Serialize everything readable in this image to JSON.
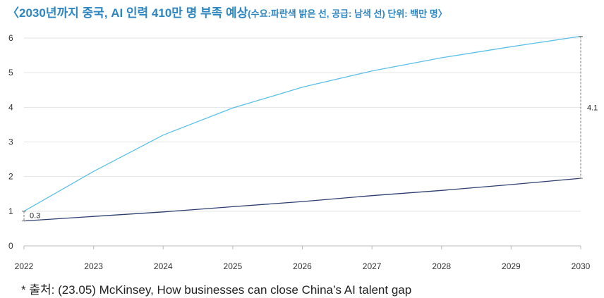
{
  "title": {
    "main": "〈2030년까지 중국, AI 인력 410만 명 부족 예상",
    "sub": "(수요:파란색 밝은 선, 공급: 남색 선) 단위: 백만 명〉"
  },
  "footnote": "* 출처: (23.05) McKinsey, How businesses can close China’s AI talent gap",
  "chart_data": {
    "type": "line",
    "title": "〈2030년까지 중국, AI 인력 410만 명 부족 예상(수요:파란색 밝은 선, 공급: 남색 선) 단위: 백만 명〉",
    "xlabel": "",
    "ylabel": "",
    "x": [
      "2022",
      "2023",
      "2024",
      "2025",
      "2026",
      "2027",
      "2028",
      "2029",
      "2030"
    ],
    "ylim": [
      0,
      6
    ],
    "yticks": [
      "0",
      "1",
      "2",
      "3",
      "4",
      "5",
      "6"
    ],
    "grid": true,
    "series": [
      {
        "color": "#5bc0e8",
        "values": [
          1.0,
          2.15,
          3.2,
          3.98,
          4.58,
          5.05,
          5.43,
          5.75,
          6.05
        ]
      },
      {
        "color": "#2c3e6e",
        "values": [
          0.72,
          0.85,
          0.98,
          1.13,
          1.28,
          1.45,
          1.6,
          1.77,
          1.95
        ]
      }
    ],
    "annotations": [
      {
        "text": "0.3",
        "x": "2022",
        "y_from": 0.72,
        "y_to": 1.0
      },
      {
        "text": "4.1",
        "x": "2030",
        "y_from": 1.95,
        "y_to": 6.05
      }
    ]
  }
}
